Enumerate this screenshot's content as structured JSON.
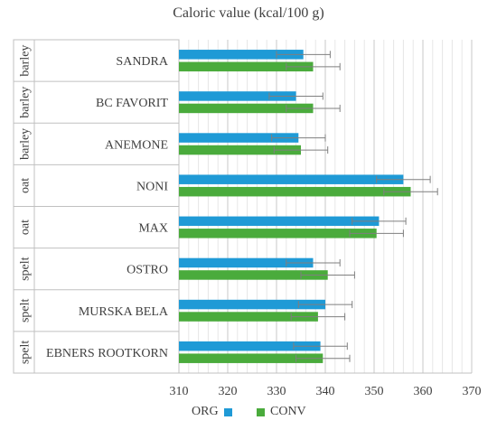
{
  "chart_data": {
    "type": "bar",
    "orientation": "horizontal",
    "title": "Caloric value (kcal/100 g)",
    "categories": [
      {
        "group": "barley",
        "name": "SANDRA"
      },
      {
        "group": "barley",
        "name": "BC FAVORIT"
      },
      {
        "group": "barley",
        "name": "ANEMONE"
      },
      {
        "group": "oat",
        "name": "NONI"
      },
      {
        "group": "oat",
        "name": "MAX"
      },
      {
        "group": "spelt",
        "name": "OSTRO"
      },
      {
        "group": "spelt",
        "name": "MURSKA BELA"
      },
      {
        "group": "spelt",
        "name": "EBNERS ROOTKORN"
      }
    ],
    "series": [
      {
        "name": "ORG",
        "color": "#1f9ad6",
        "values": [
          335.5,
          334.0,
          334.5,
          356.0,
          351.0,
          337.5,
          340.0,
          339.0
        ],
        "errors": [
          5.5,
          5.5,
          5.5,
          5.5,
          5.5,
          5.5,
          5.5,
          5.5
        ]
      },
      {
        "name": "CONV",
        "color": "#4aab3c",
        "values": [
          337.5,
          337.5,
          335.0,
          357.5,
          350.5,
          340.5,
          338.5,
          339.5
        ],
        "errors": [
          5.5,
          5.5,
          5.5,
          5.5,
          5.5,
          5.5,
          5.5,
          5.5
        ]
      }
    ],
    "xlim": [
      310,
      370
    ],
    "xticks": [
      310,
      320,
      330,
      340,
      350,
      360,
      370
    ],
    "grid": true,
    "legend_position": "bottom"
  }
}
